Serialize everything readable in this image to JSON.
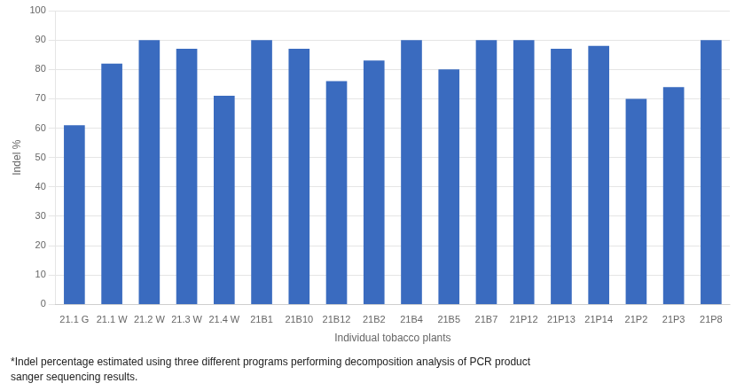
{
  "chart_data": {
    "type": "bar",
    "categories": [
      "21.1 G",
      "21.1 W",
      "21.2 W",
      "21.3 W",
      "21.4 W",
      "21B1",
      "21B10",
      "21B12",
      "21B2",
      "21B4",
      "21B5",
      "21B7",
      "21P12",
      "21P13",
      "21P14",
      "21P2",
      "21P3",
      "21P8"
    ],
    "values": [
      61,
      82,
      90,
      87,
      71,
      90,
      87,
      76,
      83,
      90,
      80,
      90,
      90,
      87,
      88,
      70,
      74,
      90
    ],
    "color": "#3A6BBF",
    "xlabel": "Individual tobacco plants",
    "ylabel": "Indel %",
    "ylim": [
      0,
      100
    ],
    "yticks": [
      0,
      10,
      20,
      30,
      40,
      50,
      60,
      70,
      80,
      90,
      100
    ],
    "grid": true,
    "annotations": [
      "*Indel percentage estimated using three different programs performing decomposition analysis of PCR product",
      "sanger sequencing results."
    ]
  }
}
